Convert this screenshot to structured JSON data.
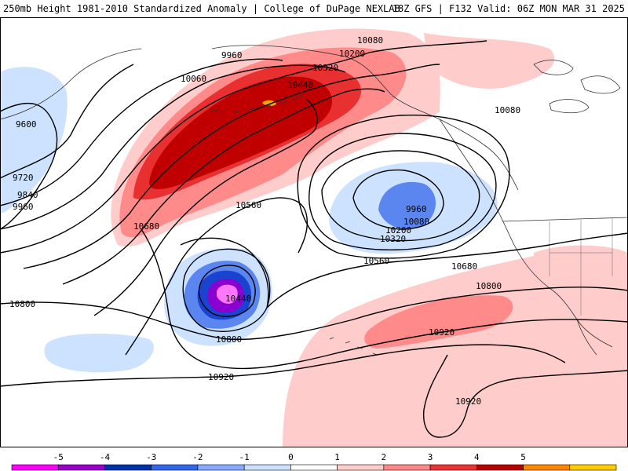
{
  "header": {
    "title": "250mb Height 1981-2010 Standardized Anomaly | College of DuPage NEXLAB",
    "run_info": "18Z GFS | F132 Valid: 06Z MON MAR 31 2025"
  },
  "contour_labels": [
    "10080",
    "10200",
    "10320",
    "10440",
    "9960",
    "10060",
    "9600",
    "9720",
    "9840",
    "9960",
    "10560",
    "10680",
    "10080",
    "9960",
    "10080",
    "10200",
    "10320",
    "10560",
    "10680",
    "10800",
    "10440",
    "10800",
    "10800",
    "10920",
    "10920",
    "10920"
  ],
  "colorbar": {
    "ticks": [
      "-5",
      "-4",
      "-3",
      "-2",
      "-1",
      "0",
      "1",
      "2",
      "3",
      "4",
      "5"
    ],
    "colors": [
      "#ff00ff",
      "#9900cc",
      "#0033aa",
      "#3366ee",
      "#88aaff",
      "#cce0ff",
      "#ffffff",
      "#ffcccc",
      "#ff8888",
      "#ee3333",
      "#bb0000",
      "#ff8800",
      "#ffcc00"
    ]
  },
  "palette": {
    "anom_pos_1": "#ffcccc",
    "anom_pos_2": "#ff8a8a",
    "anom_pos_3": "#e83030",
    "anom_pos_4": "#c00000",
    "anom_pos_5": "#ffa500",
    "anom_neg_1": "#cde2ff",
    "anom_neg_2": "#5b86f0",
    "anom_neg_3": "#1a44d0",
    "anom_neg_4": "#8a00d0",
    "anom_neg_5": "#ff77ff"
  }
}
